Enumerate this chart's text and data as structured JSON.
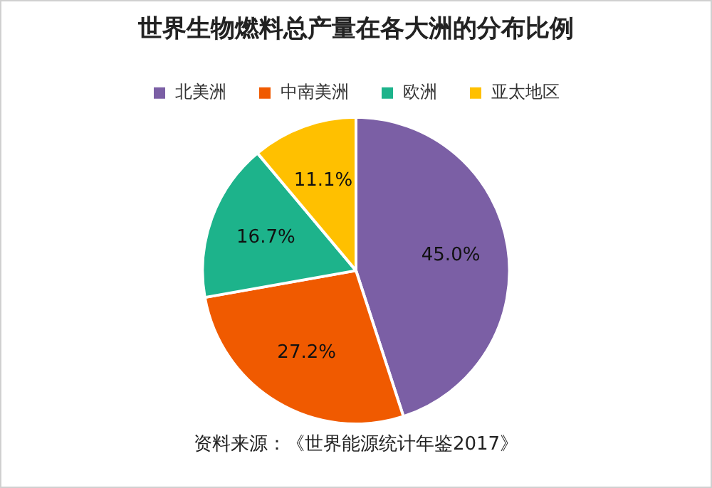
{
  "chart_data": {
    "type": "pie",
    "title": "世界生物燃料总产量在各大洲的分布比例",
    "categories": [
      "北美洲",
      "中南美洲",
      "欧洲",
      "亚太地区"
    ],
    "values": [
      45.0,
      27.2,
      16.7,
      11.1
    ],
    "colors": [
      "#7b5fa5",
      "#f05a00",
      "#1db38b",
      "#ffc000"
    ],
    "value_labels": [
      "45.0%",
      "27.2%",
      "16.7%",
      "11.1%"
    ],
    "legend": "top",
    "annotations": [
      "资料来源：《世界能源统计年鉴2017》"
    ]
  }
}
